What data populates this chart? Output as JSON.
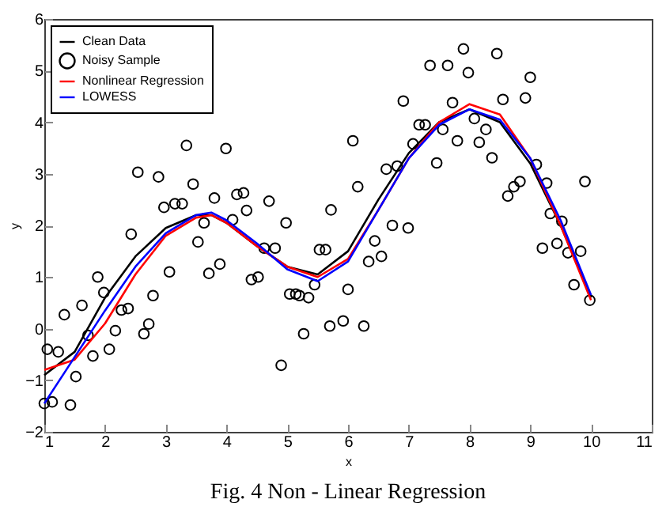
{
  "chart_data": {
    "type": "line",
    "title": "Fig. 4 Non - Linear Regression",
    "xlabel": "x",
    "ylabel": "y",
    "xlim": [
      1,
      11
    ],
    "xticks": [
      1,
      2,
      3,
      4,
      5,
      6,
      7,
      8,
      9,
      10,
      11
    ],
    "ylim": [
      -2,
      6
    ],
    "yticks": [
      -2,
      -1,
      0,
      1,
      2,
      3,
      4,
      5,
      6
    ],
    "grid": false,
    "legend": "top left",
    "series": [
      {
        "name": "Clean Data",
        "color": "#000000",
        "x": [
          1,
          1.5,
          2,
          2.5,
          3,
          3.5,
          3.75,
          4,
          4.5,
          5,
          5.5,
          6,
          6.5,
          7,
          7.5,
          8,
          8.5,
          9,
          9.5,
          10
        ],
        "values": [
          -0.9,
          -0.45,
          0.6,
          1.4,
          1.95,
          2.2,
          2.2,
          2.05,
          1.6,
          1.2,
          1.05,
          1.5,
          2.5,
          3.4,
          4.0,
          4.25,
          4.0,
          3.2,
          2.0,
          0.6
        ]
      },
      {
        "name": "Noisy Sample",
        "type": "scatter",
        "marker": "circle",
        "color": "#000000",
        "x": [
          1,
          1.05,
          1.13,
          1.23,
          1.33,
          1.43,
          1.52,
          1.62,
          1.72,
          1.8,
          1.88,
          1.98,
          2.07,
          2.17,
          2.27,
          2.38,
          2.43,
          2.64,
          2.72,
          2.79,
          3.06,
          3.53,
          3.63,
          3.71,
          3.89,
          4.41,
          4.52,
          4.62,
          4.8,
          4.9,
          4.98,
          5.04,
          5.14,
          5.2,
          5.35,
          5.27,
          5.45,
          5.53,
          5.63,
          5.7,
          5.92,
          6.0,
          6.26,
          6.34,
          6.44,
          6.55,
          6.73,
          6.99,
          9.2,
          9.44,
          9.62,
          9.83,
          9.72,
          9.98,
          3.34,
          3.99,
          2.54,
          2.88,
          3.45,
          2.97,
          3.15,
          3.27,
          3.8,
          4.17,
          4.28,
          4.33,
          4.7,
          4.1,
          5.72,
          7.9,
          8.45,
          7.35,
          7.64,
          7.98,
          9.0,
          6.91,
          8.55,
          8.92,
          7.72,
          7.17,
          7.27,
          7.56,
          8.08,
          8.27,
          6.08,
          7.07,
          7.8,
          8.16,
          8.37,
          7.46,
          6.81,
          6.63,
          9.1,
          6.16,
          8.73,
          8.83,
          9.27,
          9.9,
          8.63,
          9.33,
          9.52
        ],
        "values": [
          -1.45,
          -0.4,
          -1.42,
          -0.45,
          0.27,
          -1.48,
          -0.93,
          0.45,
          -0.13,
          -0.53,
          1.0,
          0.7,
          -0.4,
          -0.04,
          0.36,
          0.39,
          1.83,
          -0.1,
          0.09,
          0.64,
          1.1,
          1.68,
          2.05,
          1.07,
          1.25,
          0.95,
          1.0,
          1.56,
          1.56,
          -0.71,
          2.05,
          0.67,
          0.67,
          0.64,
          0.6,
          -0.1,
          0.85,
          1.53,
          1.53,
          0.05,
          0.15,
          0.76,
          0.05,
          1.3,
          1.7,
          1.4,
          2.0,
          1.95,
          1.56,
          1.65,
          1.47,
          1.5,
          0.85,
          0.55,
          3.55,
          3.49,
          3.03,
          2.94,
          2.8,
          2.35,
          2.42,
          2.42,
          2.53,
          2.6,
          2.63,
          2.29,
          2.47,
          2.11,
          2.3,
          5.42,
          5.33,
          5.1,
          5.1,
          4.96,
          4.87,
          4.41,
          4.44,
          4.47,
          4.38,
          3.95,
          3.95,
          3.86,
          4.07,
          3.86,
          3.64,
          3.58,
          3.64,
          3.61,
          3.31,
          3.21,
          3.15,
          3.09,
          3.18,
          2.75,
          2.75,
          2.85,
          2.82,
          2.85,
          2.57,
          2.23,
          2.08
        ]
      },
      {
        "name": "Nonlinear Regression",
        "color": "#ff0000",
        "x": [
          1,
          1.5,
          2,
          2.5,
          3,
          3.5,
          3.75,
          4,
          4.5,
          5,
          5.5,
          6,
          6.5,
          7,
          7.5,
          8,
          8.5,
          9,
          9.5,
          10
        ],
        "values": [
          -0.8,
          -0.6,
          0.1,
          1.05,
          1.8,
          2.15,
          2.2,
          2.05,
          1.6,
          1.2,
          1.0,
          1.35,
          2.3,
          3.3,
          4.0,
          4.35,
          4.15,
          3.3,
          2.0,
          0.55
        ]
      },
      {
        "name": "LOWESS",
        "color": "#0000ff",
        "x": [
          1,
          1.5,
          2,
          2.5,
          3,
          3.5,
          3.75,
          4,
          4.5,
          5,
          5.5,
          6,
          6.5,
          7,
          7.5,
          8,
          8.5,
          9,
          9.5,
          10
        ],
        "values": [
          -1.45,
          -0.55,
          0.35,
          1.2,
          1.85,
          2.2,
          2.25,
          2.1,
          1.65,
          1.15,
          0.92,
          1.3,
          2.3,
          3.3,
          3.95,
          4.25,
          4.05,
          3.3,
          2.1,
          0.65
        ]
      }
    ]
  }
}
